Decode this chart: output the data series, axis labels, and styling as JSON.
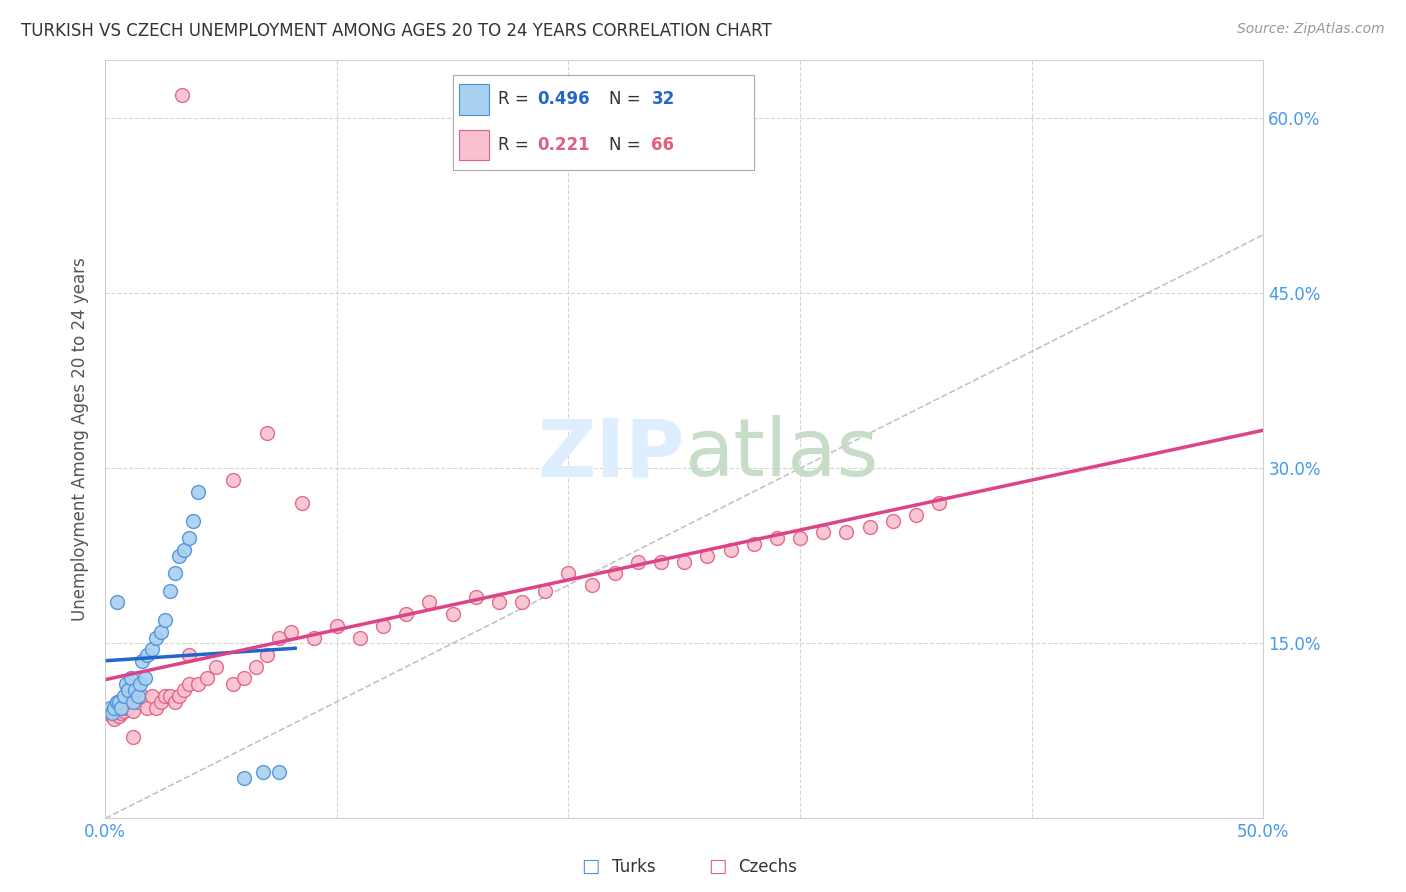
{
  "title": "TURKISH VS CZECH UNEMPLOYMENT AMONG AGES 20 TO 24 YEARS CORRELATION CHART",
  "source": "Source: ZipAtlas.com",
  "ylabel": "Unemployment Among Ages 20 to 24 years",
  "xlim": [
    0,
    0.5
  ],
  "ylim": [
    0,
    0.65
  ],
  "background_color": "#ffffff",
  "grid_color": "#cccccc",
  "turks_fill": "#a8d0f0",
  "turks_edge": "#4a90d9",
  "czechs_fill": "#f9c0d0",
  "czechs_edge": "#e06080",
  "turks_line_color": "#2266cc",
  "czechs_line_color": "#dd4488",
  "diag_line_color": "#aaaaaa",
  "legend_turks_r": "0.496",
  "legend_turks_n": "32",
  "legend_czechs_r": "0.221",
  "legend_czechs_n": "66",
  "turks_x": [
    0.002,
    0.003,
    0.004,
    0.005,
    0.006,
    0.007,
    0.008,
    0.009,
    0.01,
    0.011,
    0.012,
    0.013,
    0.014,
    0.015,
    0.016,
    0.017,
    0.018,
    0.02,
    0.022,
    0.024,
    0.026,
    0.028,
    0.03,
    0.032,
    0.034,
    0.036,
    0.038,
    0.04,
    0.06,
    0.068,
    0.075,
    0.005
  ],
  "turks_y": [
    0.095,
    0.09,
    0.095,
    0.1,
    0.1,
    0.095,
    0.105,
    0.115,
    0.11,
    0.12,
    0.1,
    0.11,
    0.105,
    0.115,
    0.135,
    0.12,
    0.14,
    0.145,
    0.155,
    0.16,
    0.17,
    0.195,
    0.21,
    0.225,
    0.23,
    0.24,
    0.255,
    0.28,
    0.035,
    0.04,
    0.04,
    0.185
  ],
  "czechs_x": [
    0.002,
    0.003,
    0.004,
    0.005,
    0.006,
    0.007,
    0.008,
    0.009,
    0.01,
    0.011,
    0.012,
    0.014,
    0.016,
    0.018,
    0.02,
    0.022,
    0.024,
    0.026,
    0.028,
    0.03,
    0.032,
    0.034,
    0.036,
    0.04,
    0.044,
    0.048,
    0.055,
    0.06,
    0.065,
    0.07,
    0.075,
    0.08,
    0.09,
    0.1,
    0.11,
    0.12,
    0.13,
    0.14,
    0.15,
    0.16,
    0.17,
    0.18,
    0.19,
    0.2,
    0.21,
    0.22,
    0.23,
    0.24,
    0.25,
    0.26,
    0.27,
    0.28,
    0.29,
    0.3,
    0.31,
    0.32,
    0.33,
    0.34,
    0.35,
    0.36,
    0.033,
    0.036,
    0.012,
    0.055,
    0.07,
    0.085
  ],
  "czechs_y": [
    0.09,
    0.088,
    0.085,
    0.092,
    0.088,
    0.09,
    0.092,
    0.095,
    0.095,
    0.098,
    0.092,
    0.1,
    0.105,
    0.095,
    0.105,
    0.095,
    0.1,
    0.105,
    0.105,
    0.1,
    0.105,
    0.11,
    0.115,
    0.115,
    0.12,
    0.13,
    0.115,
    0.12,
    0.13,
    0.14,
    0.155,
    0.16,
    0.155,
    0.165,
    0.155,
    0.165,
    0.175,
    0.185,
    0.175,
    0.19,
    0.185,
    0.185,
    0.195,
    0.21,
    0.2,
    0.21,
    0.22,
    0.22,
    0.22,
    0.225,
    0.23,
    0.235,
    0.24,
    0.24,
    0.245,
    0.245,
    0.25,
    0.255,
    0.26,
    0.27,
    0.62,
    0.14,
    0.07,
    0.29,
    0.33,
    0.27
  ]
}
